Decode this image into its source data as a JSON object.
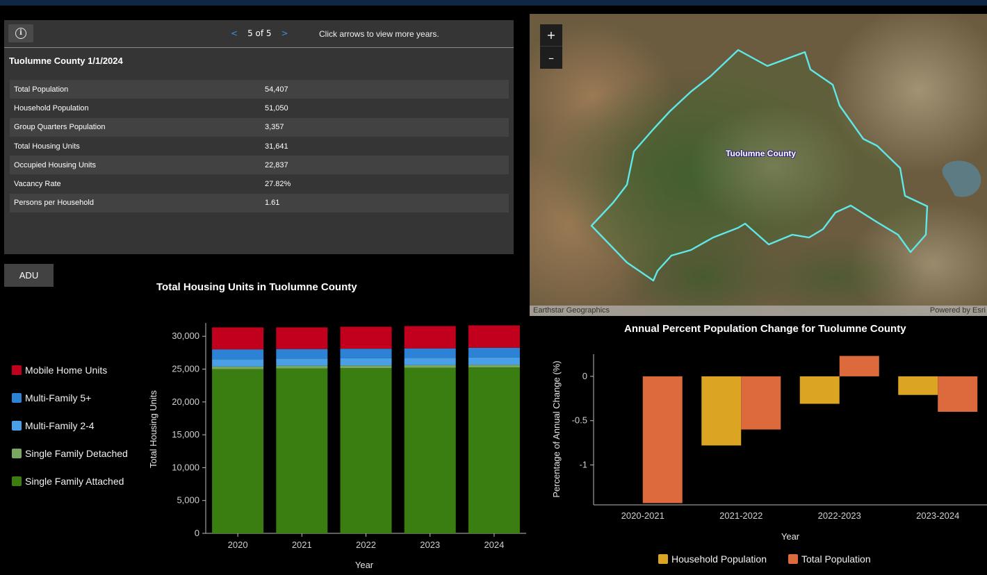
{
  "info_panel": {
    "pager": {
      "prev_icon": "chevron-left-icon",
      "next_icon": "chevron-right-icon",
      "count": "5 of 5",
      "hint": "Click arrows to view more years."
    },
    "title": "Tuolumne County 1/1/2024",
    "rows": [
      {
        "label": "Total Population",
        "value": "54,407"
      },
      {
        "label": "Household Population",
        "value": "51,050"
      },
      {
        "label": "Group Quarters Population",
        "value": "3,357"
      },
      {
        "label": "Total Housing Units",
        "value": "31,641"
      },
      {
        "label": "Occupied Housing Units",
        "value": "22,837"
      },
      {
        "label": "Vacancy Rate",
        "value": "27.82%"
      },
      {
        "label": "Persons per Household",
        "value": "1.61"
      }
    ]
  },
  "adu_button": "ADU",
  "map": {
    "zoom_in": "+",
    "zoom_out": "–",
    "label": "Tuolumne County",
    "attribution_left": "Earthstar Geographics",
    "attribution_right": "Powered by Esri",
    "outline_color": "#5ee8e8"
  },
  "chart_data": [
    {
      "type": "bar",
      "stacked": true,
      "title": "Total Housing Units in Tuolumne County",
      "xlabel": "Year",
      "ylabel": "Total Housing Units",
      "categories": [
        "2020",
        "2021",
        "2022",
        "2023",
        "2024"
      ],
      "ylim": [
        0,
        31500
      ],
      "yticks": [
        "0",
        "5,000",
        "10,000",
        "15,000",
        "20,000",
        "25,000",
        "30,000"
      ],
      "legend_position": "left",
      "series": [
        {
          "name": "Single Family Attached",
          "color": "#3a7d10",
          "values": [
            25000,
            25100,
            25150,
            25200,
            25250
          ]
        },
        {
          "name": "Single Family Detached",
          "color": "#7aa660",
          "values": [
            400,
            400,
            400,
            400,
            400
          ]
        },
        {
          "name": "Multi-Family 2-4",
          "color": "#4aa0e6",
          "values": [
            1100,
            1100,
            1100,
            1100,
            1100
          ]
        },
        {
          "name": "Multi-Family 5+",
          "color": "#2e82d6",
          "values": [
            1500,
            1450,
            1450,
            1450,
            1500
          ]
        },
        {
          "name": "Mobile Home Units",
          "color": "#c0001d",
          "values": [
            3350,
            3300,
            3350,
            3400,
            3400
          ]
        }
      ]
    },
    {
      "type": "bar",
      "title": "Annual Percent Population Change for Tuolumne County",
      "xlabel": "Year",
      "ylabel": "Percentage of Annual Change (%)",
      "categories": [
        "2020-2021",
        "2021-2022",
        "2022-2023",
        "2023-2024"
      ],
      "ylim": [
        -1.45,
        0.25
      ],
      "yticks": [
        "0",
        "-0.5",
        "-1"
      ],
      "legend_position": "bottom",
      "series": [
        {
          "name": "Household Population",
          "color": "#dba423",
          "values": [
            0,
            -0.78,
            -0.31,
            -0.21
          ]
        },
        {
          "name": "Total Population",
          "color": "#dd6a3c",
          "values": [
            -1.43,
            -0.6,
            0.23,
            -0.4
          ]
        }
      ]
    }
  ]
}
